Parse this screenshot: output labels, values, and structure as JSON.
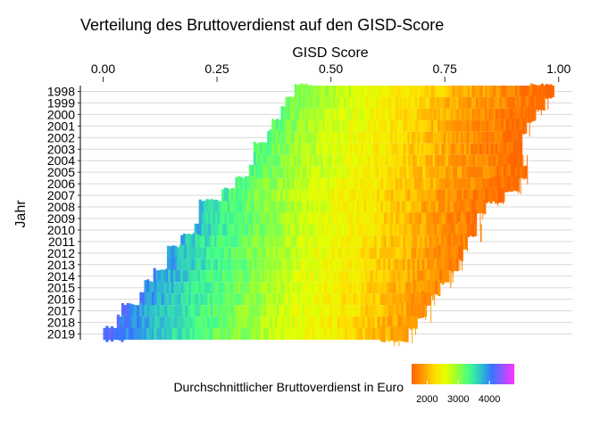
{
  "chart_data": {
    "type": "heatmap",
    "title": "Verteilung des Bruttoverdienst auf den GISD-Score",
    "xlabel": "GISD Score",
    "ylabel": "Jahr",
    "x_axis_position": "top",
    "xlim": [
      -0.05,
      1.03
    ],
    "xticks": [
      0.0,
      0.25,
      0.5,
      0.75,
      1.0
    ],
    "xtick_labels": [
      "0.00",
      "0.25",
      "0.50",
      "0.75",
      "1.00"
    ],
    "years": [
      "1998",
      "1999",
      "2000",
      "2001",
      "2002",
      "2003",
      "2004",
      "2005",
      "2006",
      "2007",
      "2008",
      "2009",
      "2010",
      "2011",
      "2012",
      "2013",
      "2014",
      "2015",
      "2016",
      "2017",
      "2018",
      "2019"
    ],
    "rows": [
      {
        "year": "1998",
        "gisd_min": 0.42,
        "gisd_max": 0.99,
        "earn_low": 3200,
        "earn_high": 1500
      },
      {
        "year": "1999",
        "gisd_min": 0.4,
        "gisd_max": 0.97,
        "earn_low": 3200,
        "earn_high": 1500
      },
      {
        "year": "2000",
        "gisd_min": 0.39,
        "gisd_max": 0.95,
        "earn_low": 3250,
        "earn_high": 1500
      },
      {
        "year": "2001",
        "gisd_min": 0.37,
        "gisd_max": 0.93,
        "earn_low": 3300,
        "earn_high": 1500
      },
      {
        "year": "2002",
        "gisd_min": 0.36,
        "gisd_max": 0.92,
        "earn_low": 3300,
        "earn_high": 1500
      },
      {
        "year": "2003",
        "gisd_min": 0.33,
        "gisd_max": 0.92,
        "earn_low": 3350,
        "earn_high": 1500
      },
      {
        "year": "2004",
        "gisd_min": 0.33,
        "gisd_max": 0.92,
        "earn_low": 3350,
        "earn_high": 1500
      },
      {
        "year": "2005",
        "gisd_min": 0.32,
        "gisd_max": 0.93,
        "earn_low": 3350,
        "earn_high": 1500
      },
      {
        "year": "2006",
        "gisd_min": 0.29,
        "gisd_max": 0.91,
        "earn_low": 3400,
        "earn_high": 1500
      },
      {
        "year": "2007",
        "gisd_min": 0.26,
        "gisd_max": 0.88,
        "earn_low": 3450,
        "earn_high": 1500
      },
      {
        "year": "2008",
        "gisd_min": 0.21,
        "gisd_max": 0.84,
        "earn_low": 3700,
        "earn_high": 1600
      },
      {
        "year": "2009",
        "gisd_min": 0.21,
        "gisd_max": 0.82,
        "earn_low": 3750,
        "earn_high": 1600
      },
      {
        "year": "2010",
        "gisd_min": 0.2,
        "gisd_max": 0.82,
        "earn_low": 3800,
        "earn_high": 1600
      },
      {
        "year": "2011",
        "gisd_min": 0.17,
        "gisd_max": 0.8,
        "earn_low": 3800,
        "earn_high": 1650
      },
      {
        "year": "2012",
        "gisd_min": 0.14,
        "gisd_max": 0.79,
        "earn_low": 3900,
        "earn_high": 1650
      },
      {
        "year": "2013",
        "gisd_min": 0.14,
        "gisd_max": 0.78,
        "earn_low": 3950,
        "earn_high": 1650
      },
      {
        "year": "2014",
        "gisd_min": 0.11,
        "gisd_max": 0.76,
        "earn_low": 4000,
        "earn_high": 1700
      },
      {
        "year": "2015",
        "gisd_min": 0.09,
        "gisd_max": 0.74,
        "earn_low": 4050,
        "earn_high": 1700
      },
      {
        "year": "2016",
        "gisd_min": 0.08,
        "gisd_max": 0.72,
        "earn_low": 4100,
        "earn_high": 1750
      },
      {
        "year": "2017",
        "gisd_min": 0.04,
        "gisd_max": 0.71,
        "earn_low": 4150,
        "earn_high": 1800
      },
      {
        "year": "2018",
        "gisd_min": 0.03,
        "gisd_max": 0.69,
        "earn_low": 4200,
        "earn_high": 1800
      },
      {
        "year": "2019",
        "gisd_min": 0.0,
        "gisd_max": 0.67,
        "earn_low": 4300,
        "earn_high": 1850
      }
    ],
    "legend": {
      "title": "Durchschnittlicher Bruttoverdienst in Euro",
      "position": "bottom",
      "ticks": [
        2000,
        3000,
        4000
      ],
      "tick_labels": [
        "2000",
        "3000",
        "4000"
      ],
      "range": [
        1500,
        4800
      ],
      "colors": [
        "#ff6600",
        "#ff9900",
        "#ffdd00",
        "#e6ff00",
        "#99ff33",
        "#44ff88",
        "#2ec7c7",
        "#3377ff",
        "#9955ff",
        "#ff33ff"
      ]
    },
    "grid": "horizontal-major"
  }
}
